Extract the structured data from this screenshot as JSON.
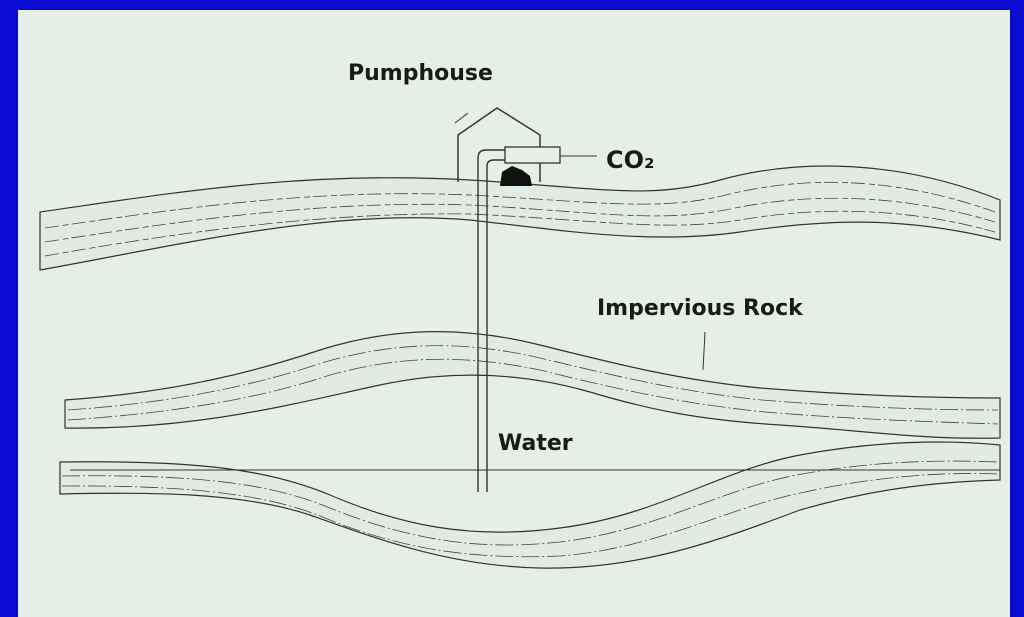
{
  "labels": {
    "pumphouse": "Pumphouse",
    "co2": "CO₂",
    "impervious_rock": "Impervious Rock",
    "water": "Water"
  }
}
